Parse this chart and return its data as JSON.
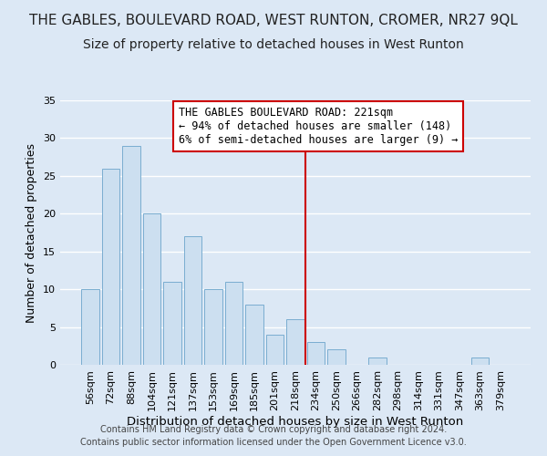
{
  "title": "THE GABLES, BOULEVARD ROAD, WEST RUNTON, CROMER, NR27 9QL",
  "subtitle": "Size of property relative to detached houses in West Runton",
  "xlabel": "Distribution of detached houses by size in West Runton",
  "ylabel": "Number of detached properties",
  "bar_labels": [
    "56sqm",
    "72sqm",
    "88sqm",
    "104sqm",
    "121sqm",
    "137sqm",
    "153sqm",
    "169sqm",
    "185sqm",
    "201sqm",
    "218sqm",
    "234sqm",
    "250sqm",
    "266sqm",
    "282sqm",
    "298sqm",
    "314sqm",
    "331sqm",
    "347sqm",
    "363sqm",
    "379sqm"
  ],
  "bar_values": [
    10,
    26,
    29,
    20,
    11,
    17,
    10,
    11,
    8,
    4,
    6,
    3,
    2,
    0,
    1,
    0,
    0,
    0,
    0,
    1,
    0
  ],
  "bar_color": "#ccdff0",
  "bar_edge_color": "#7aadd0",
  "background_color": "#dce8f5",
  "grid_color": "#ffffff",
  "red_line_x": 10.5,
  "annotation_line1": "THE GABLES BOULEVARD ROAD: 221sqm",
  "annotation_line2": "← 94% of detached houses are smaller (148)",
  "annotation_line3": "6% of semi-detached houses are larger (9) →",
  "annotation_box_color": "#ffffff",
  "annotation_box_edge_color": "#cc0000",
  "red_line_color": "#cc0000",
  "ylim": [
    0,
    35
  ],
  "yticks": [
    0,
    5,
    10,
    15,
    20,
    25,
    30,
    35
  ],
  "footer": "Contains HM Land Registry data © Crown copyright and database right 2024.\nContains public sector information licensed under the Open Government Licence v3.0.",
  "title_fontsize": 11,
  "subtitle_fontsize": 10,
  "xlabel_fontsize": 9.5,
  "ylabel_fontsize": 9,
  "tick_fontsize": 8,
  "annotation_fontsize": 8.5,
  "footer_fontsize": 7
}
